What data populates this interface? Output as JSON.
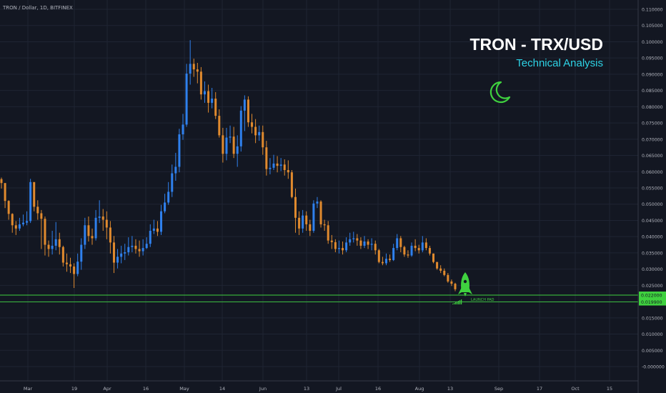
{
  "header": {
    "symbol_label": "TRON / Dollar, 1D, BITFINEX"
  },
  "overlay": {
    "title": "TRON - TRX/USD",
    "subtitle": "Technical Analysis",
    "moon_icon": "crescent-moon-icon",
    "rocket_icon": "rocket-icon",
    "launch_pad_label": "LAUNCH PAD"
  },
  "colors": {
    "background": "#131722",
    "grid": "#1f2433",
    "up": "#2f80ed",
    "down": "#e08a2e",
    "level": "#3fd13f",
    "title": "#ffffff",
    "subtitle": "#2ed3e6",
    "axis_text": "#b2b5be"
  },
  "chart_data": {
    "type": "candlestick",
    "price_axis": {
      "ticks": [
        "0.110000",
        "0.105000",
        "0.100000",
        "0.095000",
        "0.090000",
        "0.085000",
        "0.080000",
        "0.075000",
        "0.070000",
        "0.065000",
        "0.060000",
        "0.055000",
        "0.050000",
        "0.045000",
        "0.040000",
        "0.035000",
        "0.030000",
        "0.025000",
        "0.020000",
        "0.015000",
        "0.010000",
        "0.005000",
        "-0.000000"
      ],
      "ylim": [
        -0.001,
        0.112
      ]
    },
    "time_axis": {
      "labels": [
        "Mar",
        "19",
        "Apr",
        "16",
        "May",
        "14",
        "Jun",
        "13",
        "Jul",
        "16",
        "Aug",
        "13",
        "Sep",
        "17",
        "Oct",
        "15"
      ]
    },
    "levels": [
      {
        "value": 0.022,
        "label": "0.022000"
      },
      {
        "value": 0.0199,
        "label": "0.019900"
      }
    ],
    "close": [
      0.0565,
      0.051,
      0.047,
      0.0435,
      0.0425,
      0.0438,
      0.0443,
      0.0448,
      0.0568,
      0.0492,
      0.0472,
      0.0455,
      0.0375,
      0.0362,
      0.0372,
      0.0392,
      0.0368,
      0.032,
      0.0315,
      0.0308,
      0.0285,
      0.0323,
      0.0375,
      0.0435,
      0.0402,
      0.0395,
      0.0458,
      0.0462,
      0.0452,
      0.0428,
      0.0382,
      0.032,
      0.0338,
      0.0348,
      0.0352,
      0.0368,
      0.0372,
      0.0362,
      0.0355,
      0.0365,
      0.0378,
      0.0418,
      0.0425,
      0.0415,
      0.0478,
      0.0505,
      0.0538,
      0.0595,
      0.0615,
      0.0715,
      0.0745,
      0.0902,
      0.0932,
      0.0915,
      0.0908,
      0.0838,
      0.0848,
      0.0812,
      0.0825,
      0.0772,
      0.0712,
      0.0655,
      0.0705,
      0.0708,
      0.0655,
      0.0678,
      0.0788,
      0.0822,
      0.0752,
      0.0738,
      0.0712,
      0.0722,
      0.0675,
      0.0608,
      0.0612,
      0.0625,
      0.0618,
      0.0622,
      0.0605,
      0.0598,
      0.0522,
      0.0458,
      0.0425,
      0.0465,
      0.0438,
      0.0418,
      0.0502,
      0.0508,
      0.0438,
      0.0435,
      0.0388,
      0.0383,
      0.0362,
      0.0365,
      0.0358,
      0.0382,
      0.0392,
      0.0395,
      0.0388,
      0.0372,
      0.0385,
      0.0375,
      0.0378,
      0.0358,
      0.0322,
      0.0318,
      0.0332,
      0.0328,
      0.0365,
      0.0395,
      0.0368,
      0.0345,
      0.0342,
      0.0372,
      0.0365,
      0.0358,
      0.0382,
      0.0365,
      0.0348,
      0.0322,
      0.0302,
      0.0295,
      0.0282,
      0.0262,
      0.0255,
      0.0238
    ],
    "high": [
      0.0582,
      0.0548,
      0.0512,
      0.0472,
      0.0448,
      0.0458,
      0.0468,
      0.0478,
      0.0578,
      0.0568,
      0.0512,
      0.0482,
      0.0462,
      0.0388,
      0.0418,
      0.0445,
      0.0412,
      0.0372,
      0.0348,
      0.0335,
      0.0318,
      0.0348,
      0.0395,
      0.0458,
      0.0462,
      0.0425,
      0.0482,
      0.0512,
      0.0485,
      0.0478,
      0.0448,
      0.0402,
      0.0362,
      0.0372,
      0.0378,
      0.0398,
      0.0402,
      0.0392,
      0.0388,
      0.0392,
      0.0398,
      0.0438,
      0.0452,
      0.0448,
      0.0498,
      0.0532,
      0.0568,
      0.0622,
      0.0658,
      0.0732,
      0.0778,
      0.0932,
      0.1005,
      0.0948,
      0.0935,
      0.0922,
      0.0878,
      0.0868,
      0.0858,
      0.0845,
      0.0792,
      0.0735,
      0.0735,
      0.0742,
      0.0738,
      0.0712,
      0.0802,
      0.0835,
      0.0832,
      0.0778,
      0.0762,
      0.0742,
      0.0742,
      0.0695,
      0.0642,
      0.0652,
      0.0648,
      0.0642,
      0.0638,
      0.0635,
      0.0605,
      0.0548,
      0.0478,
      0.0482,
      0.0478,
      0.0452,
      0.0512,
      0.0522,
      0.0512,
      0.0452,
      0.0448,
      0.0405,
      0.0392,
      0.0388,
      0.0385,
      0.0398,
      0.0412,
      0.0415,
      0.0408,
      0.0398,
      0.0402,
      0.0392,
      0.0395,
      0.0388,
      0.0362,
      0.0338,
      0.0348,
      0.0345,
      0.0378,
      0.0408,
      0.0402,
      0.0372,
      0.0358,
      0.0382,
      0.0392,
      0.0375,
      0.0402,
      0.0395,
      0.0372,
      0.0348,
      0.0322,
      0.0312,
      0.0302,
      0.0288,
      0.0268,
      0.0258
    ],
    "low": [
      0.0548,
      0.0488,
      0.0452,
      0.0412,
      0.0405,
      0.0418,
      0.0432,
      0.0435,
      0.0442,
      0.0478,
      0.0452,
      0.0362,
      0.0342,
      0.0338,
      0.0345,
      0.0358,
      0.0345,
      0.0308,
      0.0292,
      0.0288,
      0.0242,
      0.0278,
      0.0298,
      0.0362,
      0.0385,
      0.0375,
      0.0388,
      0.0442,
      0.0418,
      0.0392,
      0.0348,
      0.0288,
      0.0302,
      0.0318,
      0.0328,
      0.0342,
      0.0352,
      0.0348,
      0.0338,
      0.0342,
      0.0362,
      0.0368,
      0.0408,
      0.0402,
      0.0405,
      0.0472,
      0.0498,
      0.0522,
      0.0572,
      0.0598,
      0.0698,
      0.0738,
      0.0868,
      0.0892,
      0.0872,
      0.0822,
      0.0812,
      0.0782,
      0.0795,
      0.0762,
      0.0705,
      0.0628,
      0.0635,
      0.0688,
      0.0642,
      0.0615,
      0.0662,
      0.0725,
      0.0738,
      0.0718,
      0.0688,
      0.0695,
      0.0652,
      0.0588,
      0.0592,
      0.0605,
      0.0598,
      0.0602,
      0.0588,
      0.0578,
      0.0518,
      0.0412,
      0.0405,
      0.0412,
      0.0418,
      0.0402,
      0.0412,
      0.0488,
      0.0428,
      0.0418,
      0.0378,
      0.0362,
      0.0352,
      0.0348,
      0.0345,
      0.0352,
      0.0372,
      0.0382,
      0.0372,
      0.0362,
      0.0365,
      0.0362,
      0.0358,
      0.0345,
      0.0318,
      0.0312,
      0.0312,
      0.0322,
      0.0325,
      0.0358,
      0.0352,
      0.0338,
      0.0335,
      0.0338,
      0.0355,
      0.0348,
      0.0352,
      0.0358,
      0.0342,
      0.0318,
      0.0298,
      0.0288,
      0.0278,
      0.0258,
      0.0248,
      0.0232
    ]
  }
}
